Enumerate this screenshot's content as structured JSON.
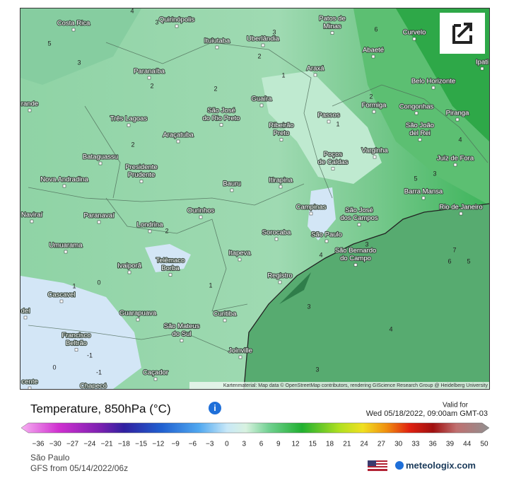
{
  "map": {
    "cities": [
      [
        "Costa Rica"
      ],
      [
        "Quirinópolis"
      ],
      [
        "Patos de",
        "Minas"
      ],
      [
        "Curvelo"
      ],
      [
        "Uberlândia"
      ],
      [
        "Ituiutaba"
      ],
      [
        "Abaeté"
      ],
      [
        "Ipati"
      ],
      [
        "Paranaíba"
      ],
      [
        "Araxá"
      ],
      [
        "Belo Horizonte"
      ],
      [
        "rande"
      ],
      [
        "Guaíra"
      ],
      [
        "Formiga"
      ],
      [
        "Congonhas"
      ],
      [
        "Piranga"
      ],
      [
        "São José",
        "do Rio Preto"
      ],
      [
        "Passos"
      ],
      [
        "Três Lagoas"
      ],
      [
        "Ribeirão",
        "Preto"
      ],
      [
        "São João",
        "del Rei"
      ],
      [
        "Araçatuba"
      ],
      [
        "Bataguassu"
      ],
      [
        "Varginha"
      ],
      [
        "Poços",
        "de Caldas"
      ],
      [
        "Juiz de Fora"
      ],
      [
        "Presidente",
        "Prudente"
      ],
      [
        "Nova Andradina"
      ],
      [
        "Bauru"
      ],
      [
        "Itirapina"
      ],
      [
        "Barra Mansa"
      ],
      [
        "Campinas"
      ],
      [
        "Rio de Janeiro"
      ],
      [
        "Ourinhos"
      ],
      [
        "São José",
        "dos Campos"
      ],
      [
        "Naviraí"
      ],
      [
        "Paranavaí"
      ],
      [
        "Londrina"
      ],
      [
        "Sorocaba"
      ],
      [
        "São Paulo"
      ],
      [
        "Umuarama"
      ],
      [
        "Itapeva"
      ],
      [
        "São Bernardo",
        "do Campo"
      ],
      [
        "Telêmaco",
        "Borba"
      ],
      [
        "Ivaiporã"
      ],
      [
        "Registro"
      ],
      [
        "Cascavel"
      ],
      [
        "Guarapuava"
      ],
      [
        "Curitiba"
      ],
      [
        "del"
      ],
      [
        "São Mateus",
        "do Sul"
      ],
      [
        "Francisco",
        "Beltrão"
      ],
      [
        "Joinville"
      ],
      [
        "Caçador"
      ],
      [
        "cente"
      ],
      [
        "Chapecó"
      ]
    ],
    "contour_labels": [
      4,
      3,
      5,
      3,
      2,
      1,
      2,
      2,
      3,
      6,
      2,
      1,
      4,
      2,
      5,
      3,
      2,
      1,
      0,
      1,
      -1,
      -1,
      0,
      3,
      4,
      3,
      4,
      3,
      6,
      5,
      7
    ],
    "attribution": "Kartenmaterial: Map data © OpenStreetMap contributors, rendering GIScience Research Group @ Heidelberg University"
  },
  "legend": {
    "title": "Temperature, 850hPa (°C)",
    "valid_label": "Valid for",
    "valid_time": "Wed 05/18/2022, 09:00am GMT-03",
    "ticks": [
      "−36",
      "−30",
      "−27",
      "−24",
      "−21",
      "−18",
      "−15",
      "−12",
      "−9",
      "−6",
      "−3",
      "0",
      "3",
      "6",
      "9",
      "12",
      "15",
      "18",
      "21",
      "24",
      "27",
      "30",
      "33",
      "36",
      "39",
      "44",
      "50"
    ]
  },
  "footer": {
    "location": "São Paulo",
    "model_run": "GFS from 05/14/2022/06z",
    "brand": "meteologix.com"
  }
}
